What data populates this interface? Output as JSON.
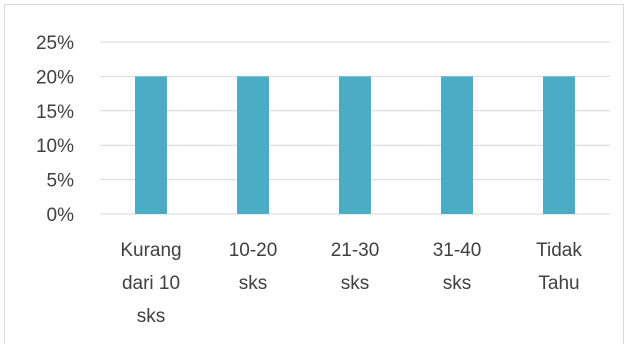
{
  "chart_data": {
    "type": "bar",
    "categories": [
      [
        "Kurang",
        "dari 10",
        "sks"
      ],
      [
        "10-20",
        "sks"
      ],
      [
        "21-30",
        "sks"
      ],
      [
        "31-40",
        "sks"
      ],
      [
        "Tidak",
        "Tahu"
      ]
    ],
    "values": [
      0.2,
      0.2,
      0.2,
      0.2,
      0.2
    ],
    "ylim": [
      0,
      0.25
    ],
    "yticks": [
      "0%",
      "5%",
      "10%",
      "15%",
      "20%",
      "25%"
    ],
    "ytick_values": [
      0,
      0.05,
      0.1,
      0.15,
      0.2,
      0.25
    ],
    "grid": true,
    "bar_color": "#4bacc6",
    "grid_color": "#d9d9d9"
  }
}
